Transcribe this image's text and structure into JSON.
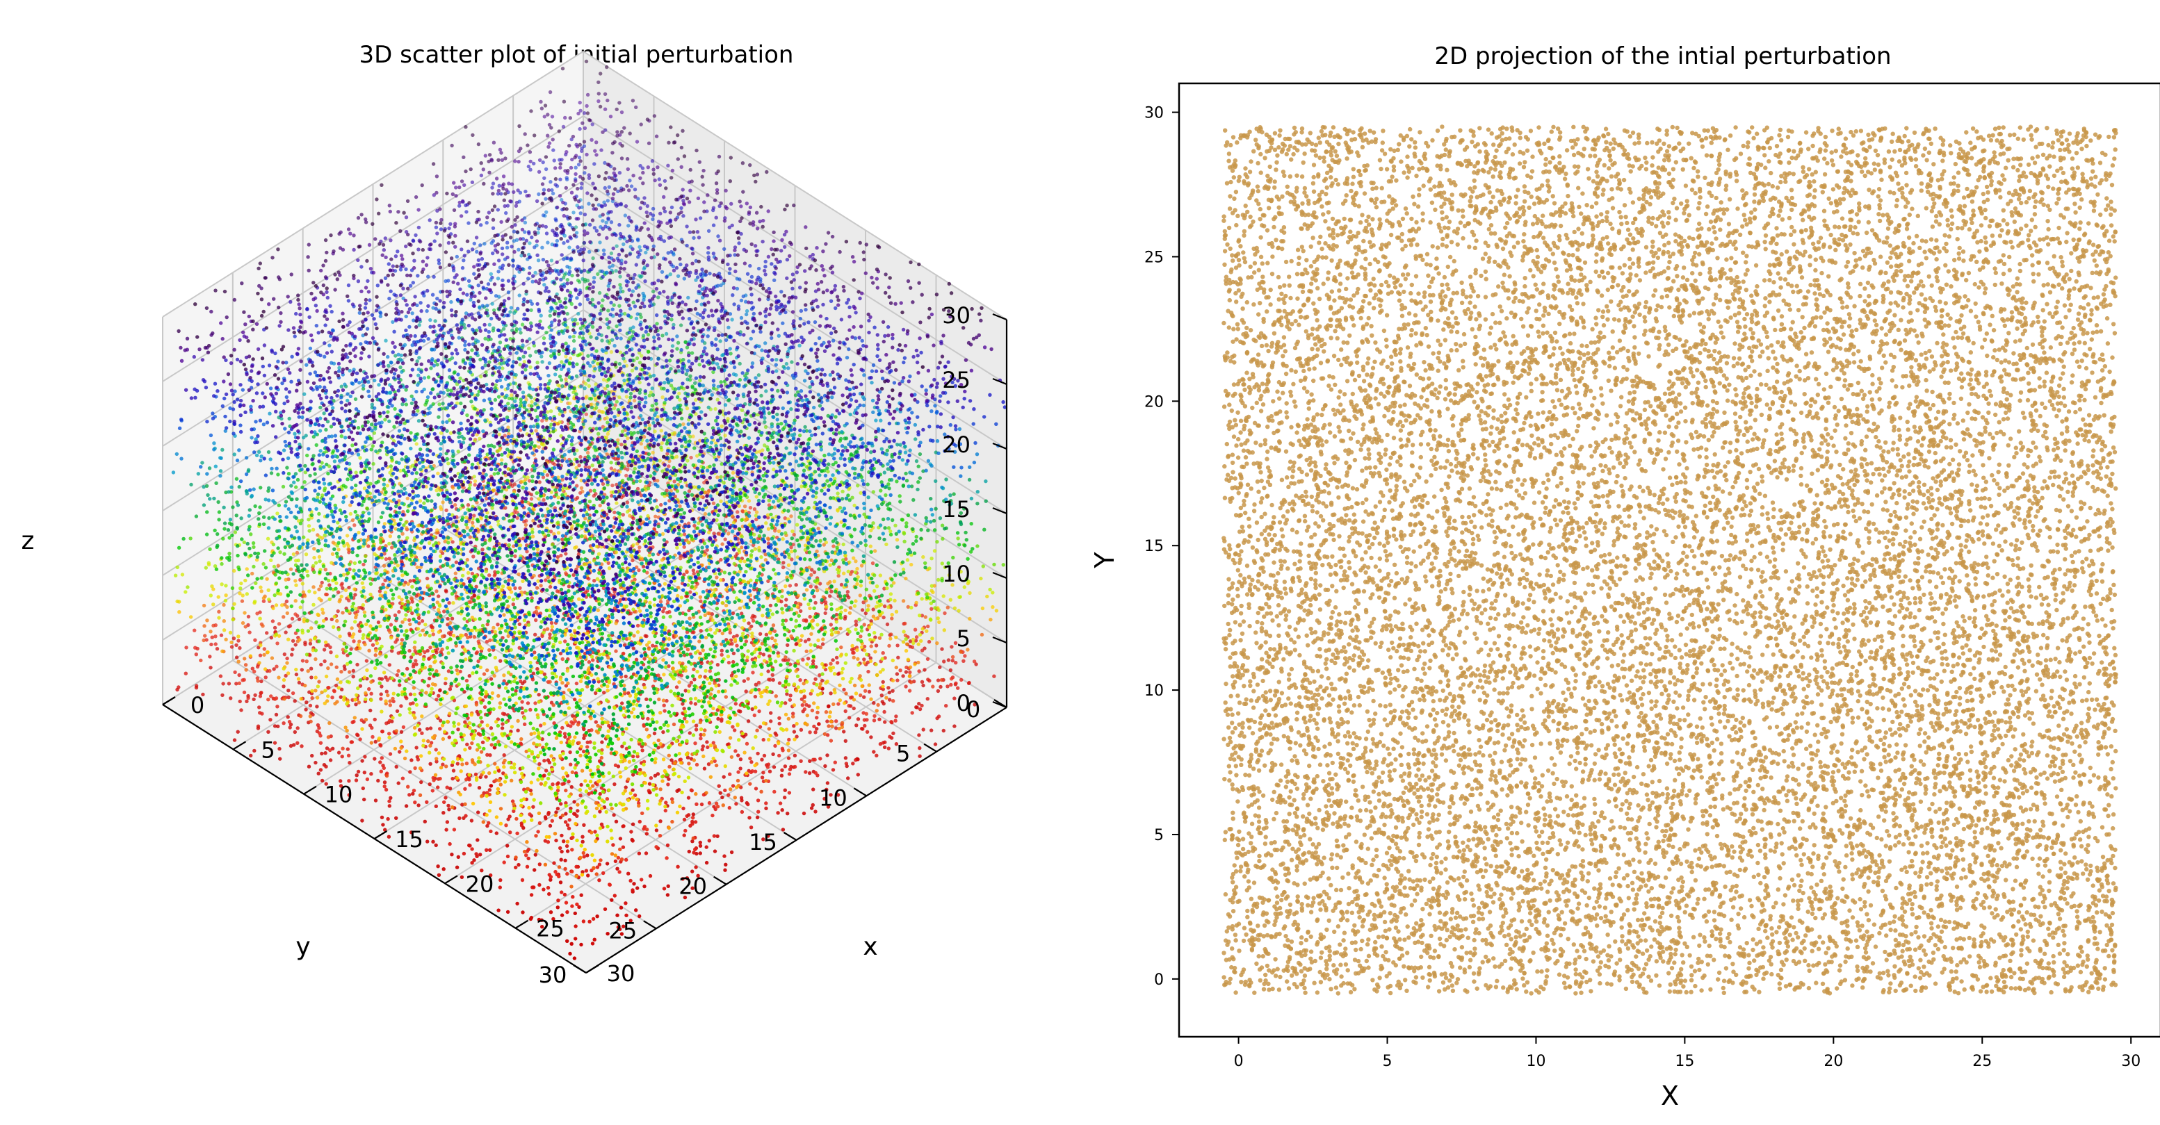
{
  "chart_data": [
    {
      "type": "scatter",
      "subtype": "3d",
      "title": "3D scatter plot of initial perturbation",
      "xlabel": "x",
      "ylabel": "y",
      "zlabel": "z",
      "xlim": [
        0,
        30
      ],
      "ylim": [
        0,
        30
      ],
      "zlim": [
        0,
        30
      ],
      "xticks": [
        "0",
        "5",
        "10",
        "15",
        "20",
        "25",
        "30"
      ],
      "yticks": [
        "0",
        "5",
        "10",
        "15",
        "20",
        "25",
        "30"
      ],
      "zticks": [
        "0",
        "5",
        "10",
        "15",
        "20",
        "25",
        "30"
      ],
      "grid": true,
      "colormap": "nipy_spectral_r",
      "color_by": "z",
      "points": {
        "lattice_sites_per_axis": 30,
        "lattice_start": 0,
        "lattice_step": 1,
        "perturbation_amplitude": 0.5
      }
    },
    {
      "type": "scatter",
      "title": "2D projection of the intial perturbation",
      "xlabel": "X",
      "ylabel": "Y",
      "xlim": [
        -2,
        31
      ],
      "ylim": [
        -2,
        31
      ],
      "xticks": [
        "0",
        "5",
        "10",
        "15",
        "20",
        "25",
        "30"
      ],
      "yticks": [
        "0",
        "5",
        "10",
        "15",
        "20",
        "25",
        "30"
      ],
      "grid": false,
      "marker_color": "#c8964a",
      "points": {
        "lattice_sites_per_axis": 30,
        "lattice_start": 0,
        "lattice_step": 1,
        "perturbation_amplitude": 0.5
      }
    }
  ]
}
